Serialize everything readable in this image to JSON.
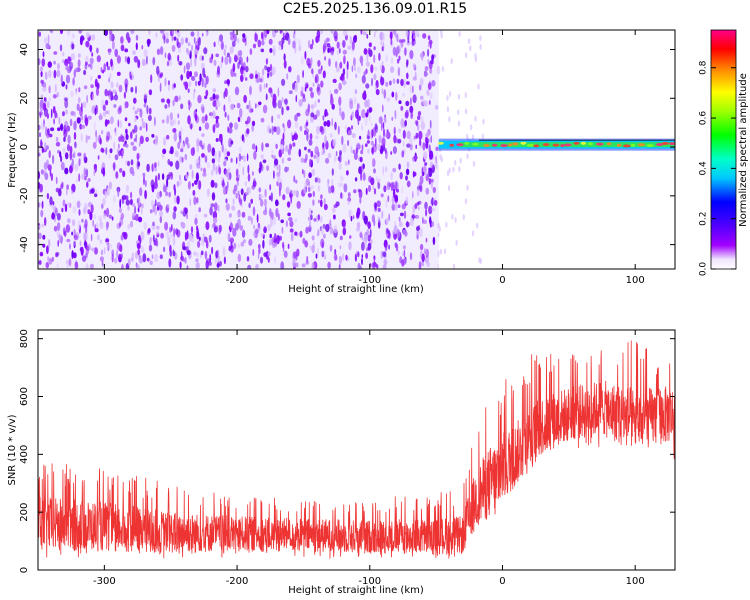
{
  "figure_title": "C2E5.2025.136.09.01.R15",
  "colors": {
    "spectrogram_main": "#7a00ff",
    "snr_line": "#ee3333",
    "axis": "#000000"
  },
  "chart_data": [
    {
      "type": "heatmap",
      "title": "",
      "xlabel": "Height of straight line (km)",
      "ylabel": "Frequency (Hz)",
      "xlim": [
        -350,
        130
      ],
      "ylim": [
        -50,
        48
      ],
      "xticks": [
        -300,
        -200,
        -100,
        0,
        100
      ],
      "xtick_labels": [
        "-300",
        "-200",
        "-100",
        "0",
        "100"
      ],
      "yticks": [
        -40,
        -20,
        0,
        20,
        40
      ],
      "ytick_labels": [
        "-40",
        "-20",
        "0",
        "20",
        "40"
      ],
      "grid": false,
      "colorbar": {
        "label": "Normalized spectral amplitude",
        "range": [
          0,
          0.95
        ],
        "ticks": [
          0.0,
          0.2,
          0.4,
          0.6,
          0.8
        ],
        "tick_labels": [
          "0.0",
          "0.2",
          "0.4",
          "0.6",
          "0.8"
        ],
        "colormap": "rainbow (white, violet, blue, cyan, green, yellow, orange, red, magenta)"
      },
      "regions": [
        {
          "x_range": [
            -350,
            -48
          ],
          "description": "broadband noise, amplitude ~0.05-0.15 across all frequencies"
        },
        {
          "x_range": [
            -48,
            130
          ],
          "frequency_hz": 1,
          "amplitude_range": [
            0.3,
            0.9
          ],
          "description": "narrow carrier line near 1 Hz"
        }
      ]
    },
    {
      "type": "line",
      "title": "",
      "xlabel": "Height of straight line (km)",
      "ylabel": "SNR (10 * v/v)",
      "xlim": [
        -350,
        130
      ],
      "ylim": [
        0,
        830
      ],
      "xticks": [
        -300,
        -200,
        -100,
        0,
        100
      ],
      "xtick_labels": [
        "-300",
        "-200",
        "-100",
        "0",
        "100"
      ],
      "yticks": [
        0,
        200,
        400,
        600,
        800
      ],
      "ytick_labels": [
        "0",
        "200",
        "400",
        "600",
        "800"
      ],
      "grid": false,
      "series": [
        {
          "x": [
            -350,
            -300,
            -250,
            -200,
            -150,
            -100,
            -50,
            -30,
            -20,
            -10,
            0,
            10,
            20,
            30,
            50,
            75,
            100,
            130
          ],
          "y": [
            160,
            150,
            130,
            125,
            120,
            115,
            115,
            120,
            250,
            300,
            350,
            400,
            450,
            500,
            540,
            560,
            520,
            540
          ],
          "y_min": [
            40,
            40,
            40,
            40,
            40,
            40,
            40,
            40,
            140,
            150,
            200,
            300,
            350,
            400,
            420,
            420,
            400,
            380
          ],
          "y_max": [
            380,
            350,
            300,
            260,
            250,
            250,
            270,
            280,
            500,
            600,
            650,
            700,
            750,
            770,
            760,
            770,
            800,
            730
          ]
        }
      ]
    }
  ]
}
